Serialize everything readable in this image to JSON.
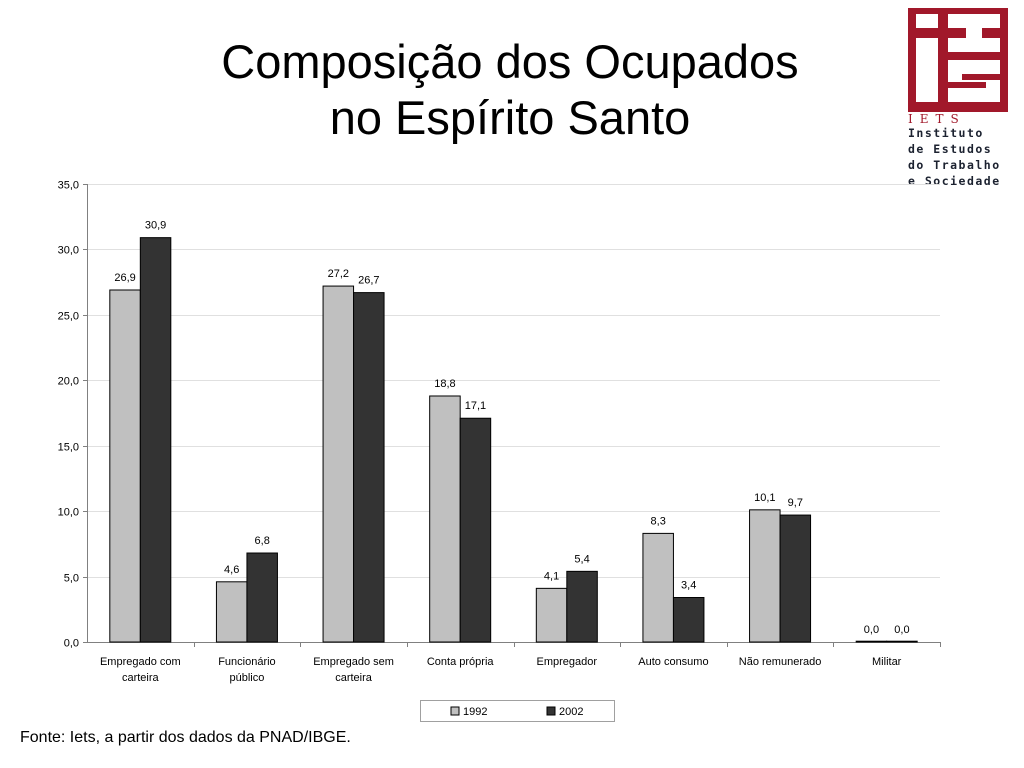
{
  "title": {
    "line1": "Composição dos Ocupados",
    "line2": "no Espírito Santo"
  },
  "logo": {
    "abbr": "IETS",
    "name_lines": [
      "Instituto",
      "de Estudos",
      "do Trabalho",
      "e Sociedade"
    ],
    "brand_color": "#a1182a"
  },
  "chart_data": {
    "type": "bar",
    "categories": [
      [
        "Empregado com",
        "carteira"
      ],
      [
        "Funcionário",
        "público"
      ],
      [
        "Empregado sem",
        "carteira"
      ],
      [
        "Conta própria"
      ],
      [
        "Empregador"
      ],
      [
        "Auto consumo"
      ],
      [
        "Não remunerado"
      ],
      [
        "Militar"
      ]
    ],
    "series": [
      {
        "name": "1992",
        "color": "#c0c0c0",
        "values": [
          26.9,
          4.6,
          27.2,
          18.8,
          4.1,
          8.3,
          10.1,
          0.0
        ]
      },
      {
        "name": "2002",
        "color": "#333333",
        "values": [
          30.9,
          6.8,
          26.7,
          17.1,
          5.4,
          3.4,
          9.7,
          0.0
        ]
      }
    ],
    "ylim": [
      0,
      35
    ],
    "yticks": [
      0,
      5,
      10,
      15,
      20,
      25,
      30,
      35
    ],
    "ytick_labels": [
      "0,0",
      "5,0",
      "10,0",
      "15,0",
      "20,0",
      "25,0",
      "30,0",
      "35,0"
    ],
    "data_labels": [
      [
        "26,9",
        "4,6",
        "27,2",
        "18,8",
        "4,1",
        "8,3",
        "10,1",
        "0,0"
      ],
      [
        "30,9",
        "6,8",
        "26,7",
        "17,1",
        "5,4",
        "3,4",
        "9,7",
        "0,0"
      ]
    ],
    "grid": true,
    "legend": "bottom"
  },
  "source": "Fonte: Iets, a partir dos dados da PNAD/IBGE."
}
